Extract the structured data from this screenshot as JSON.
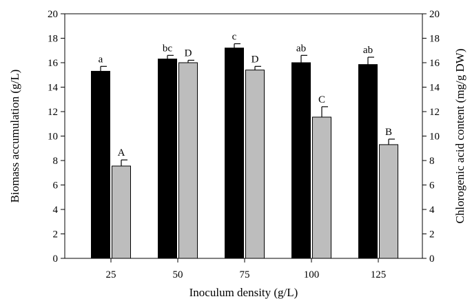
{
  "chart_data": {
    "type": "bar",
    "xlabel": "Inoculum density (g/L)",
    "ylabel_left": "Biomass accumulation (g/L)",
    "ylabel_right": "Chlorogenic acid content (mg/g DW)",
    "ylim_left": [
      0,
      20
    ],
    "ylim_right": [
      0,
      20
    ],
    "yticks": [
      0,
      2,
      4,
      6,
      8,
      10,
      12,
      14,
      16,
      18,
      20
    ],
    "categories": [
      "25",
      "50",
      "75",
      "100",
      "125"
    ],
    "series": [
      {
        "axis": "left",
        "color": "#000000",
        "values": [
          15.3,
          16.3,
          17.2,
          16.0,
          15.85
        ],
        "errors": [
          0.4,
          0.3,
          0.35,
          0.6,
          0.6
        ],
        "labels": [
          "a",
          "bc",
          "c",
          "ab",
          "ab"
        ]
      },
      {
        "axis": "right",
        "color": "#bdbdbd",
        "values": [
          7.55,
          16.0,
          15.4,
          11.55,
          9.3
        ],
        "errors": [
          0.5,
          0.2,
          0.3,
          0.85,
          0.45
        ],
        "labels": [
          "A",
          "D",
          "D",
          "C",
          "B"
        ]
      }
    ]
  }
}
